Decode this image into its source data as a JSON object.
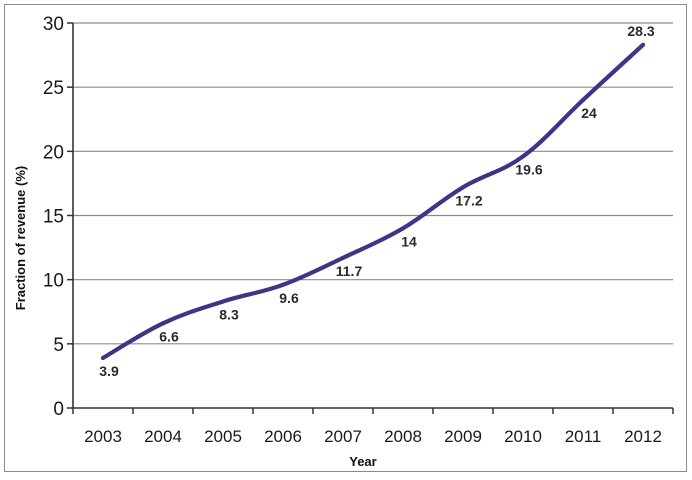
{
  "chart_data": {
    "type": "line",
    "title": "",
    "xlabel": "Year",
    "ylabel": "Fraction of revenue (%)",
    "categories": [
      "2003",
      "2004",
      "2005",
      "2006",
      "2007",
      "2008",
      "2009",
      "2010",
      "2011",
      "2012"
    ],
    "series": [
      {
        "values": [
          3.9,
          6.6,
          8.3,
          9.6,
          11.7,
          14,
          17.2,
          19.6,
          24,
          28.3
        ],
        "data_labels": [
          "3.9",
          "6.6",
          "8.3",
          "9.6",
          "11.7",
          "14",
          "17.2",
          "19.6",
          "24",
          "28.3"
        ]
      }
    ],
    "ylim": [
      0,
      30
    ],
    "yticks": [
      0,
      5,
      10,
      15,
      20,
      25,
      30
    ],
    "ytick_labels": [
      "0",
      "5",
      "10",
      "15",
      "20",
      "25",
      "30"
    ],
    "grid": "horizontal",
    "legend": "none",
    "colors": {
      "line": "#3d3585",
      "grid": "#8c8c8c",
      "axis": "#333333"
    }
  }
}
